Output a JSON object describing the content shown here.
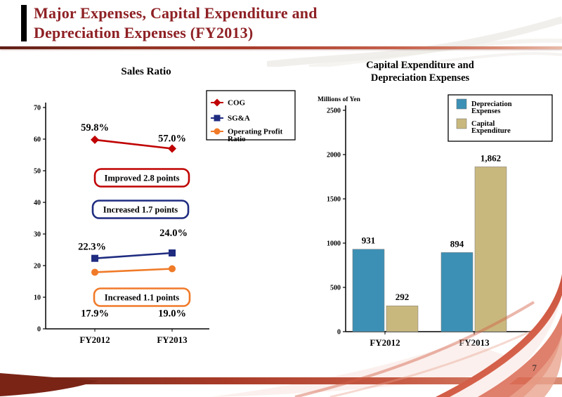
{
  "slide": {
    "title_line1": "Major Expenses, Capital Expenditure and",
    "title_line2": "Depreciation Expenses (FY2013)",
    "title_color": "#8E2024",
    "page_number": "7"
  },
  "colors": {
    "divider_dark": "#5F1F16",
    "divider_light": "#D98B74",
    "ribbon_red": "#C0392B",
    "ribbon_salmon": "#D96A52"
  },
  "chart_data": [
    {
      "type": "line",
      "title": "Sales Ratio",
      "categories": [
        "FY2012",
        "FY2013"
      ],
      "ylim": [
        0,
        70
      ],
      "yticks": [
        0,
        10,
        20,
        30,
        40,
        50,
        60,
        70
      ],
      "grid": false,
      "legend_position": "top-right",
      "series": [
        {
          "name": "COG",
          "legend_lines": [
            "COG"
          ],
          "values": [
            59.8,
            57.0
          ],
          "labels": [
            "59.8%",
            "57.0%"
          ],
          "color": "#C00000",
          "marker": "diamond"
        },
        {
          "name": "SG&A",
          "legend_lines": [
            "SG&A"
          ],
          "values": [
            22.3,
            24.0
          ],
          "labels": [
            "22.3%",
            "24.0%"
          ],
          "color": "#1F2C80",
          "marker": "square"
        },
        {
          "name": "Operating Profit Ratio",
          "legend_lines": [
            "Operating Profit",
            "Ratio"
          ],
          "values": [
            17.9,
            19.0
          ],
          "labels": [
            "17.9%",
            "19.0%"
          ],
          "color": "#F07A28",
          "marker": "circle"
        }
      ],
      "annotations": [
        {
          "text": "Improved 2.8 points",
          "color": "#C00000"
        },
        {
          "text": "Increased 1.7 points",
          "color": "#1F2C80"
        },
        {
          "text": "Increased 1.1 points",
          "color": "#F07A28"
        }
      ]
    },
    {
      "type": "bar",
      "title": "Capital Expenditure and Depreciation Expenses",
      "title_lines": [
        "Capital Expenditure and",
        "Depreciation Expenses"
      ],
      "unit_label": "Millions of Yen",
      "categories": [
        "FY2012",
        "FY2013"
      ],
      "ylim": [
        0,
        2500
      ],
      "yticks": [
        0,
        500,
        1000,
        1500,
        2000,
        2500
      ],
      "grid": false,
      "legend_position": "top-right",
      "series": [
        {
          "name": "Depreciation Expenses",
          "legend_lines": [
            "Depreciation",
            "Expenses"
          ],
          "values": [
            931,
            894
          ],
          "labels": [
            "931",
            "894"
          ],
          "color": "#3D90B5"
        },
        {
          "name": "Capital Expenditure",
          "legend_lines": [
            "Capital",
            "Expenditure"
          ],
          "values": [
            292,
            1862
          ],
          "labels": [
            "292",
            "1,862"
          ],
          "color": "#C9B87E"
        }
      ]
    }
  ]
}
